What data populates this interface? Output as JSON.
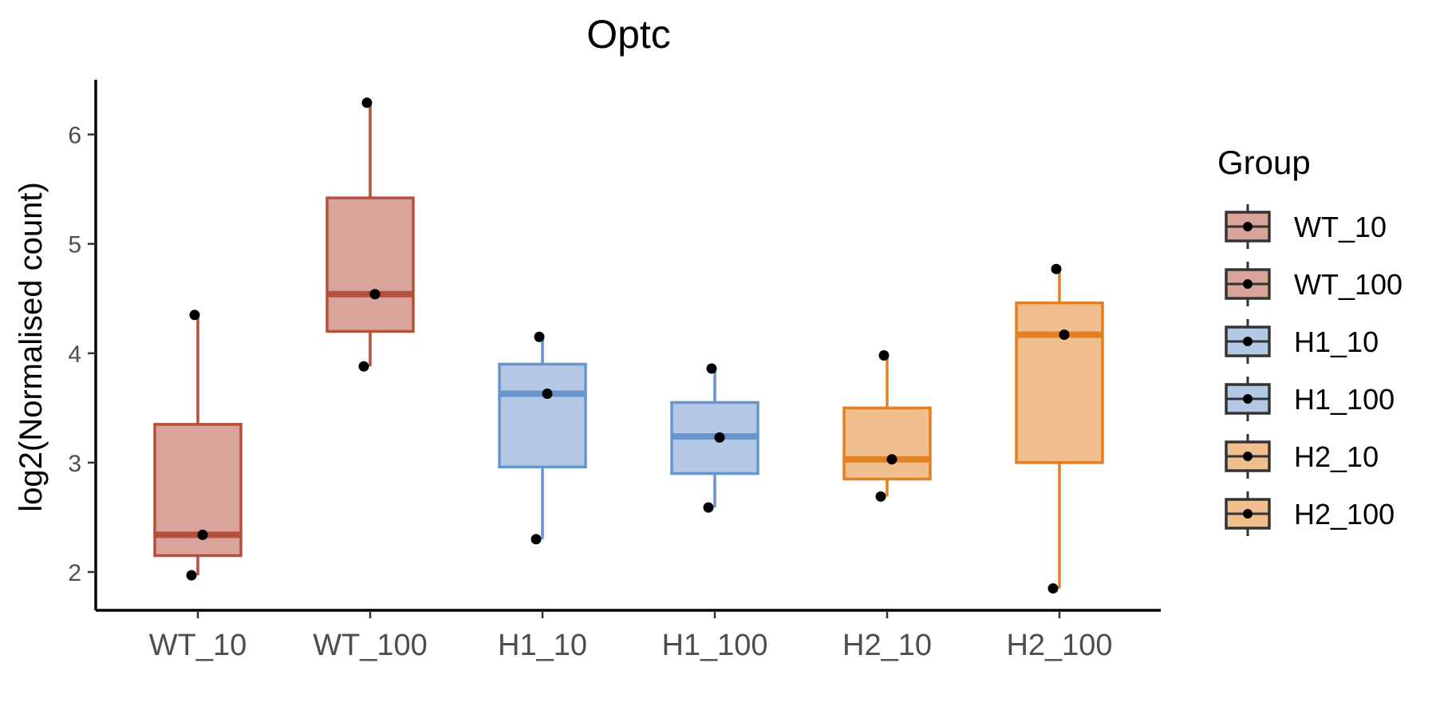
{
  "chart_data": {
    "type": "box",
    "title": "Optc",
    "xlabel": "",
    "ylabel": "log2(Normalised count)",
    "ylim": [
      1.65,
      6.5
    ],
    "yticks": [
      2,
      3,
      4,
      5,
      6
    ],
    "grid": false,
    "legend": {
      "title": "Group",
      "position": "right"
    },
    "categories": [
      "WT_10",
      "WT_100",
      "H1_10",
      "H1_100",
      "H2_10",
      "H2_100"
    ],
    "series": [
      {
        "name": "WT_10",
        "color": "#b5503c",
        "fill": "#d9a59b",
        "min": 1.97,
        "q1": 2.15,
        "median": 2.34,
        "q3": 3.35,
        "max": 4.35,
        "points": [
          1.97,
          2.34,
          4.35
        ]
      },
      {
        "name": "WT_100",
        "color": "#b5503c",
        "fill": "#d9a59b",
        "min": 3.88,
        "q1": 4.2,
        "median": 4.54,
        "q3": 5.42,
        "max": 6.29,
        "points": [
          3.88,
          4.54,
          6.29
        ]
      },
      {
        "name": "H1_10",
        "color": "#6795cc",
        "fill": "#b3c8e5",
        "min": 2.3,
        "q1": 2.96,
        "median": 3.63,
        "q3": 3.9,
        "max": 4.15,
        "points": [
          2.3,
          3.63,
          4.15
        ]
      },
      {
        "name": "H1_100",
        "color": "#6795cc",
        "fill": "#b3c8e5",
        "min": 2.59,
        "q1": 2.9,
        "median": 3.24,
        "q3": 3.55,
        "max": 3.86,
        "points": [
          2.59,
          3.23,
          3.86
        ]
      },
      {
        "name": "H2_10",
        "color": "#e38024",
        "fill": "#f1bf8d",
        "min": 2.69,
        "q1": 2.85,
        "median": 3.03,
        "q3": 3.5,
        "max": 3.98,
        "points": [
          2.69,
          3.03,
          3.98
        ]
      },
      {
        "name": "H2_100",
        "color": "#e38024",
        "fill": "#f1bf8d",
        "min": 1.85,
        "q1": 3.0,
        "median": 4.17,
        "q3": 4.46,
        "max": 4.77,
        "points": [
          1.85,
          4.17,
          4.77
        ]
      }
    ]
  }
}
